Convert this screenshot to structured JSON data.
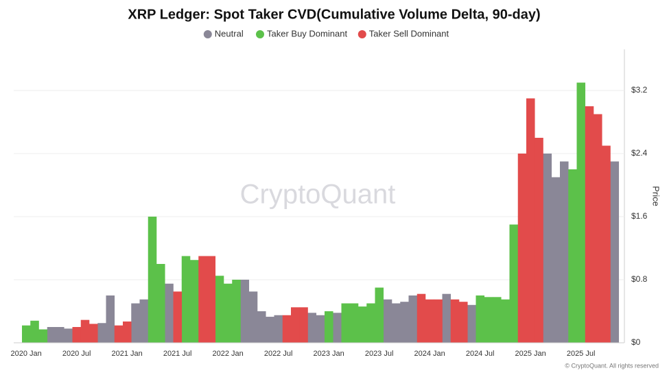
{
  "chart_data": {
    "type": "bar",
    "title": "XRP Ledger: Spot Taker CVD(Cumulative Volume Delta, 90-day)",
    "y_label": "Price",
    "watermark": "CryptoQuant",
    "credit": "© CryptoQuant. All rights reserved",
    "categories": [
      "2020 Jan",
      null,
      null,
      null,
      null,
      null,
      "2020 Jul",
      null,
      null,
      null,
      null,
      null,
      "2021 Jan",
      null,
      null,
      null,
      null,
      null,
      "2021 Jul",
      null,
      null,
      null,
      null,
      null,
      "2022 Jan",
      null,
      null,
      null,
      null,
      null,
      "2022 Jul",
      null,
      null,
      null,
      null,
      null,
      "2023 Jan",
      null,
      null,
      null,
      null,
      null,
      "2023 Jul",
      null,
      null,
      null,
      null,
      null,
      "2024 Jan",
      null,
      null,
      null,
      null,
      null,
      "2024 Jul",
      null,
      null,
      null,
      null,
      null,
      "2025 Jan",
      null,
      null,
      null,
      null,
      null,
      "2025 Jul",
      null,
      null,
      null,
      null
    ],
    "series": [
      {
        "name": "Neutral",
        "color": "#8a8797",
        "values": [
          null,
          null,
          null,
          0.2,
          0.2,
          0.18,
          null,
          null,
          null,
          0.25,
          0.6,
          null,
          null,
          0.5,
          0.55,
          null,
          null,
          0.75,
          null,
          null,
          null,
          null,
          null,
          null,
          null,
          null,
          0.8,
          0.65,
          0.4,
          0.33,
          0.35,
          null,
          null,
          null,
          0.38,
          0.35,
          null,
          0.38,
          null,
          null,
          null,
          null,
          null,
          0.55,
          0.5,
          0.52,
          0.6,
          null,
          null,
          null,
          0.62,
          null,
          null,
          0.48,
          null,
          null,
          null,
          null,
          null,
          null,
          null,
          null,
          2.4,
          2.1,
          2.3,
          null,
          null,
          null,
          null,
          null,
          2.3
        ]
      },
      {
        "name": "Taker Buy Dominant",
        "color": "#5cc14a",
        "values": [
          0.22,
          0.28,
          0.17,
          null,
          null,
          null,
          null,
          null,
          null,
          null,
          null,
          null,
          null,
          null,
          null,
          1.6,
          1.0,
          null,
          null,
          1.1,
          1.05,
          null,
          null,
          0.85,
          0.75,
          0.8,
          null,
          null,
          null,
          null,
          null,
          null,
          null,
          null,
          null,
          null,
          0.4,
          null,
          0.5,
          0.5,
          0.46,
          0.5,
          0.7,
          null,
          null,
          null,
          null,
          null,
          null,
          null,
          null,
          null,
          null,
          null,
          0.6,
          0.58,
          0.58,
          0.55,
          1.5,
          null,
          null,
          null,
          null,
          null,
          null,
          2.2,
          3.3,
          null,
          null,
          null,
          null
        ]
      },
      {
        "name": "Taker Sell Dominant",
        "color": "#e24b4b",
        "values": [
          null,
          null,
          null,
          null,
          null,
          null,
          0.2,
          0.29,
          0.24,
          null,
          null,
          0.22,
          0.27,
          null,
          null,
          null,
          null,
          null,
          0.65,
          null,
          null,
          1.1,
          1.1,
          null,
          null,
          null,
          null,
          null,
          null,
          null,
          null,
          0.35,
          0.45,
          0.45,
          null,
          null,
          null,
          null,
          null,
          null,
          null,
          null,
          null,
          null,
          null,
          null,
          null,
          0.62,
          0.55,
          0.55,
          null,
          0.55,
          0.52,
          null,
          null,
          null,
          null,
          null,
          null,
          2.4,
          3.1,
          2.6,
          null,
          null,
          null,
          null,
          null,
          3.0,
          2.9,
          2.5,
          null
        ]
      }
    ],
    "ylim": [
      0,
      3.7
    ],
    "yticks": [
      {
        "value": 0,
        "label": "$0"
      },
      {
        "value": 0.8,
        "label": "$0.8"
      },
      {
        "value": 1.6,
        "label": "$1.6"
      },
      {
        "value": 2.4,
        "label": "$2.4"
      },
      {
        "value": 3.2,
        "label": "$3.2"
      }
    ],
    "grid": true
  }
}
